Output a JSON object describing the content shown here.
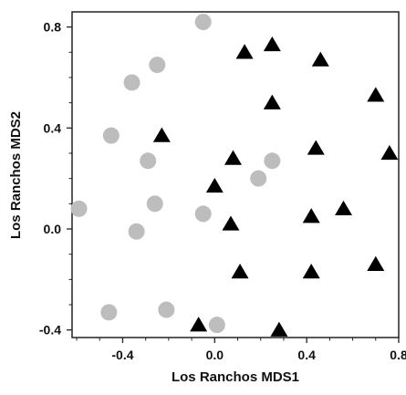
{
  "chart_data": {
    "type": "scatter",
    "title": "",
    "xlabel": "Los Ranchos MDS1",
    "ylabel": "Los Ranchos MDS2",
    "xlim": [
      -0.62,
      0.8
    ],
    "ylim": [
      -0.43,
      0.86
    ],
    "x_ticks": [
      -0.4,
      0.0,
      0.4,
      0.8
    ],
    "x_tick_labels": [
      "-0.4",
      "0.0",
      "0.4",
      "0.8"
    ],
    "y_ticks": [
      -0.4,
      0.0,
      0.4,
      0.8
    ],
    "y_tick_labels": [
      "-0.4",
      "0.0",
      "0.4",
      "0.8"
    ],
    "grid": false,
    "legend": "none",
    "series": [
      {
        "marker": "circle",
        "color": "#bdbdbd",
        "points": [
          [
            -0.05,
            0.82
          ],
          [
            -0.25,
            0.65
          ],
          [
            -0.36,
            0.58
          ],
          [
            -0.45,
            0.37
          ],
          [
            -0.29,
            0.27
          ],
          [
            0.25,
            0.27
          ],
          [
            0.19,
            0.2
          ],
          [
            -0.26,
            0.1
          ],
          [
            -0.59,
            0.08
          ],
          [
            -0.05,
            0.06
          ],
          [
            -0.34,
            -0.01
          ],
          [
            -0.46,
            -0.33
          ],
          [
            -0.21,
            -0.32
          ],
          [
            0.01,
            -0.38
          ]
        ]
      },
      {
        "marker": "triangle",
        "color": "#000000",
        "points": [
          [
            0.25,
            0.73
          ],
          [
            0.13,
            0.7
          ],
          [
            0.46,
            0.67
          ],
          [
            0.7,
            0.53
          ],
          [
            0.25,
            0.5
          ],
          [
            -0.23,
            0.37
          ],
          [
            0.44,
            0.32
          ],
          [
            0.76,
            0.3
          ],
          [
            0.08,
            0.28
          ],
          [
            0.0,
            0.17
          ],
          [
            0.56,
            0.08
          ],
          [
            0.42,
            0.05
          ],
          [
            0.07,
            0.02
          ],
          [
            0.7,
            -0.14
          ],
          [
            0.11,
            -0.17
          ],
          [
            0.42,
            -0.17
          ],
          [
            -0.07,
            -0.38
          ],
          [
            0.28,
            -0.4
          ]
        ]
      }
    ]
  }
}
